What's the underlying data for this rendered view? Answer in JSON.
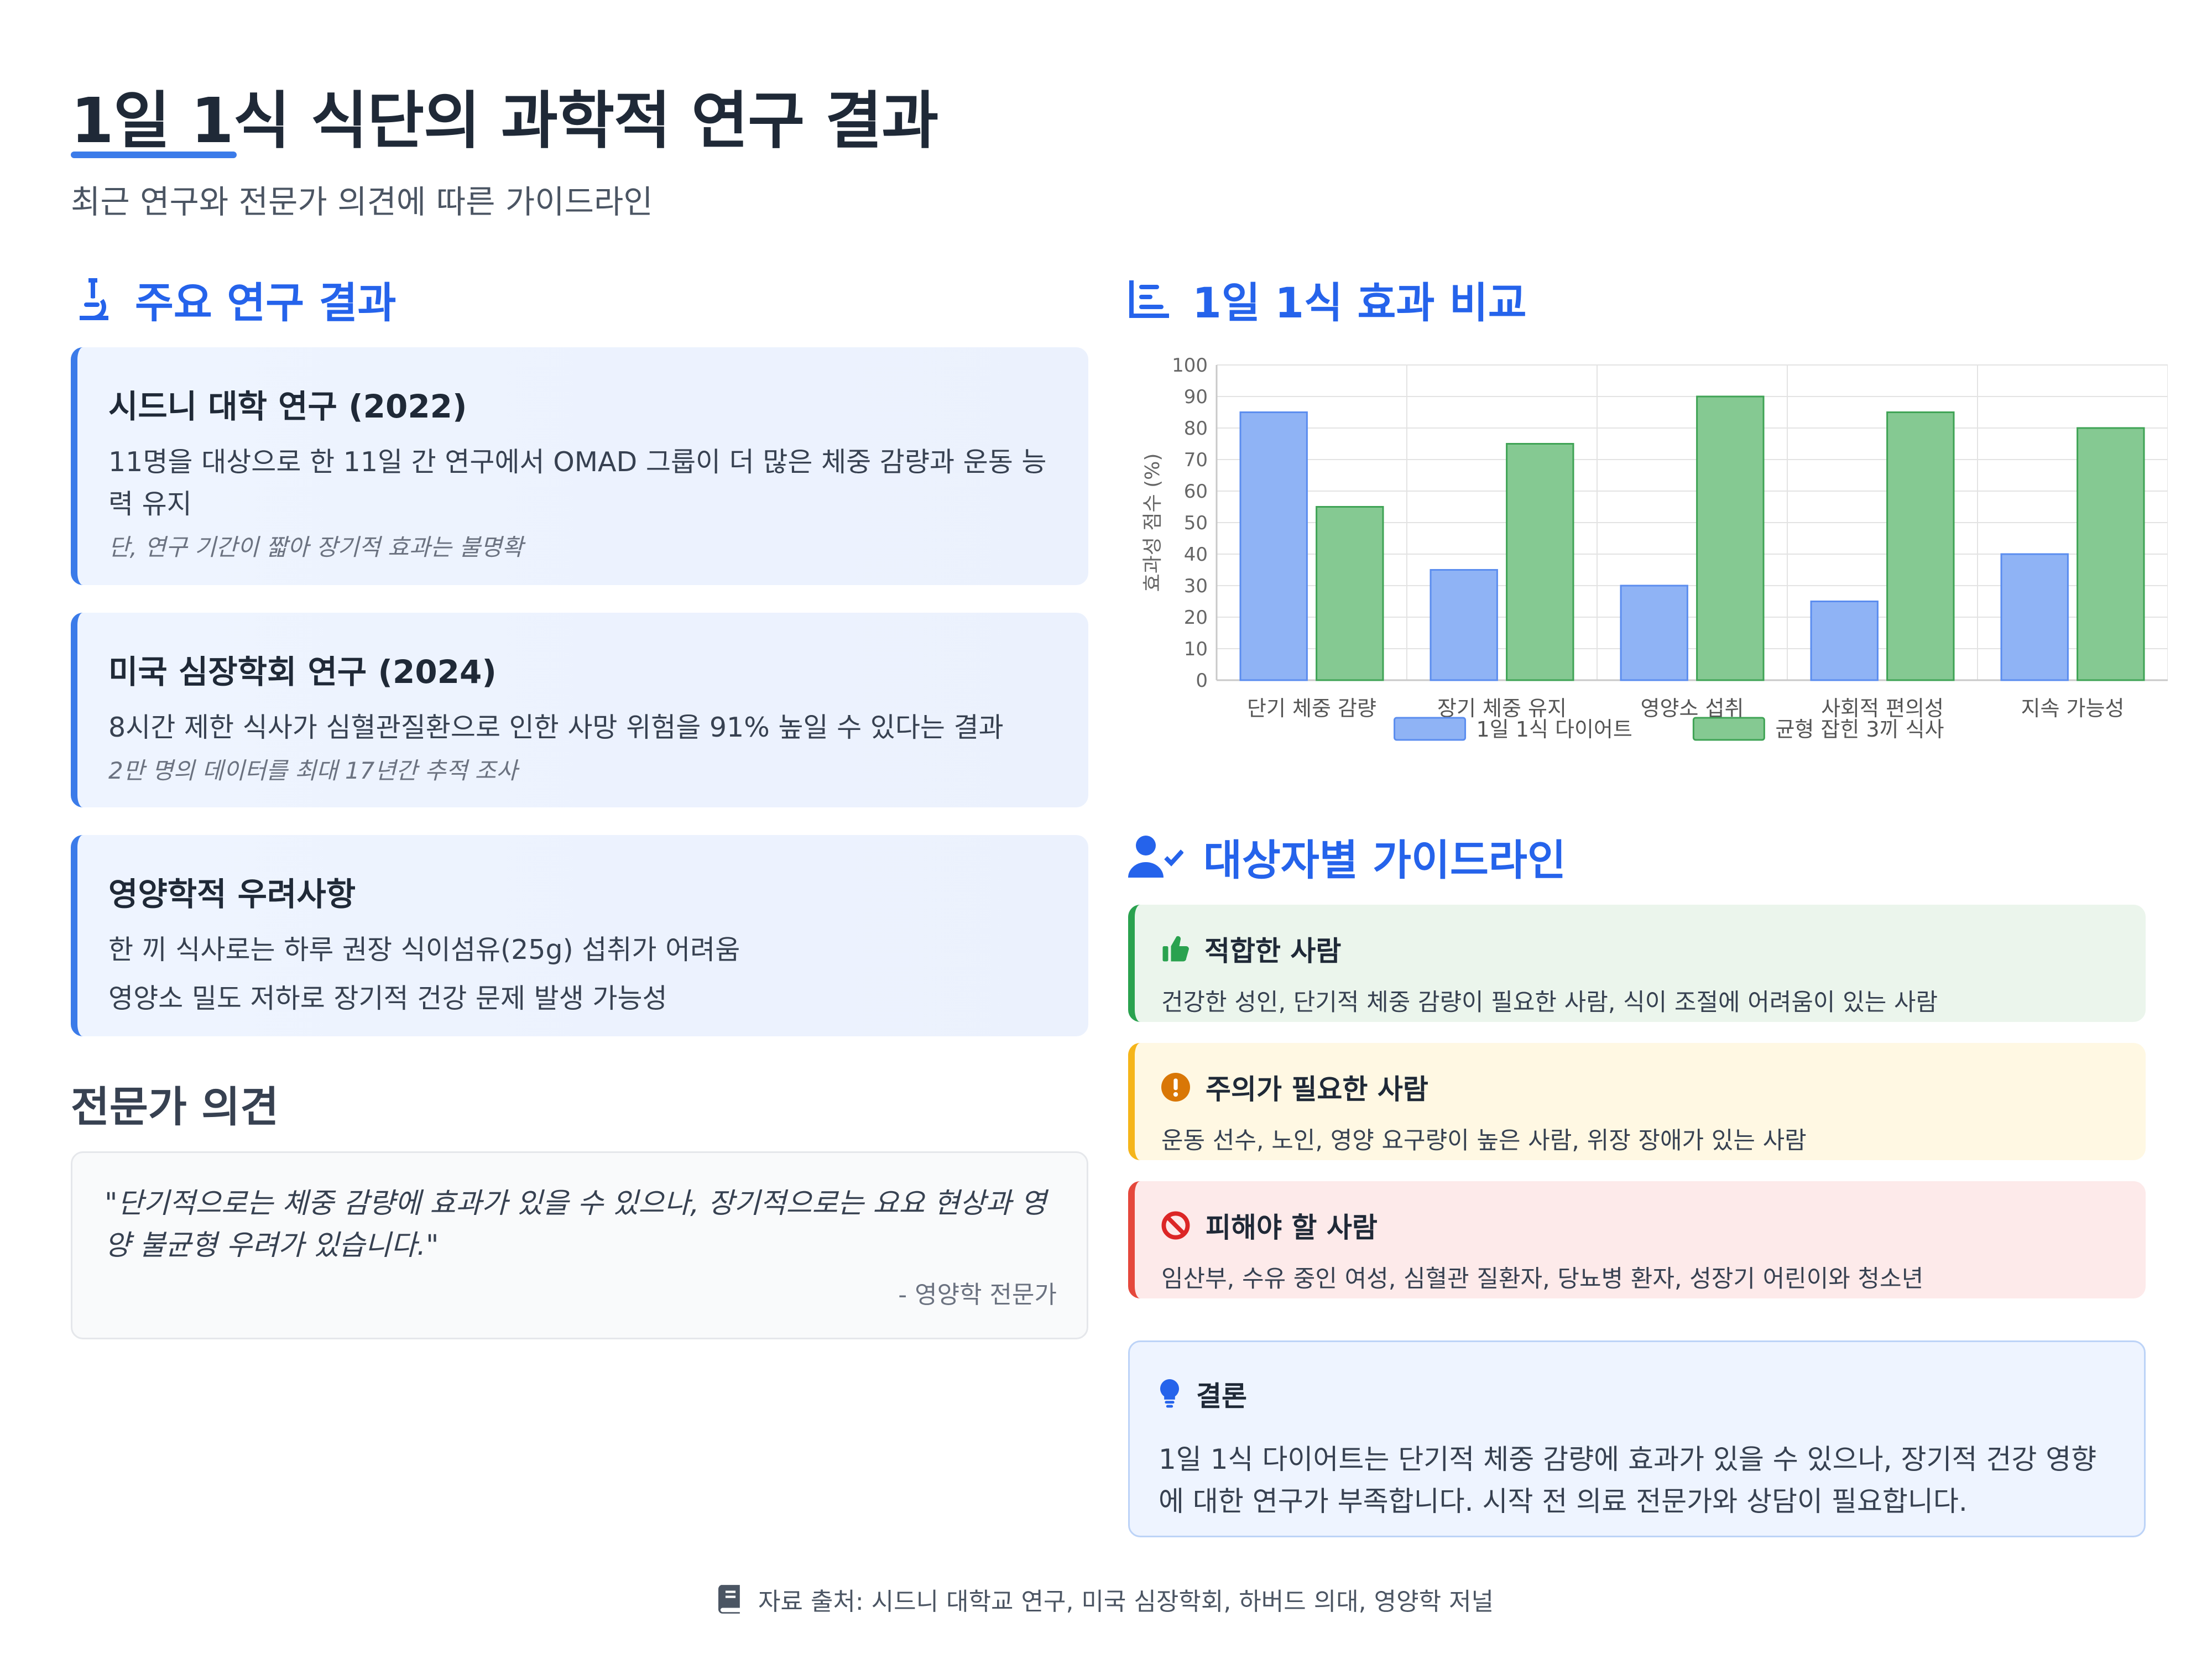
{
  "header": {
    "title": "1일 1식 식단의 과학적 연구 결과",
    "subtitle": "최근 연구와 전문가 의견에 따른 가이드라인"
  },
  "research": {
    "section_title": "주요 연구 결과",
    "icon": "microscope-icon",
    "cards": [
      {
        "title": "시드니 대학 연구 (2022)",
        "body": [
          "11명을 대상으로 한 11일 간 연구에서 OMAD 그룹이 더 많은 체중 감량과 운동 능력 유지"
        ],
        "note": "단, 연구 기간이 짧아 장기적 효과는 불명확"
      },
      {
        "title": "미국 심장학회 연구 (2024)",
        "body": [
          "8시간 제한 식사가 심혈관질환으로 인한 사망 위험을 91% 높일 수 있다는 결과"
        ],
        "note": "2만 명의 데이터를 최대 17년간 추적 조사"
      },
      {
        "title": "영양학적 우려사항",
        "body": [
          "한 끼 식사로는 하루 권장 식이섬유(25g) 섭취가 어려움",
          "영양소 밀도 저하로 장기적 건강 문제 발생 가능성"
        ],
        "note": ""
      }
    ]
  },
  "expert": {
    "section_title": "전문가 의견",
    "quote": "\"단기적으로는 체중 감량에 효과가 있을 수 있으나, 장기적으로는 요요 현상과 영양 불균형 우려가 있습니다.\"",
    "author": "- 영양학 전문가"
  },
  "comparison": {
    "section_title": "1일 1식 효과 비교",
    "icon": "chart-bar-icon"
  },
  "chart_data": {
    "type": "bar",
    "categories": [
      "단기 체중 감량",
      "장기 체중 유지",
      "영양소 섭취",
      "사회적 편의성",
      "지속 가능성"
    ],
    "series": [
      {
        "name": "1일 1식 다이어트",
        "values": [
          85,
          35,
          30,
          25,
          40
        ],
        "color": "#8fb3f5",
        "border": "#5b8def"
      },
      {
        "name": "균형 잡힌 3끼 식사",
        "values": [
          55,
          75,
          90,
          85,
          80
        ],
        "color": "#85c992",
        "border": "#3fa355"
      }
    ],
    "ylabel": "효과성 점수 (%)",
    "ylim": [
      0,
      100
    ],
    "yticks": [
      0,
      10,
      20,
      30,
      40,
      50,
      60,
      70,
      80,
      90,
      100
    ],
    "grid": true,
    "legend": "bottom"
  },
  "guidelines": {
    "section_title": "대상자별 가이드라인",
    "icon": "user-check-icon",
    "items": [
      {
        "title": "적합한 사람",
        "body": "건강한 성인, 단기적 체중 감량이 필요한 사람, 식이 조절에 어려움이 있는 사람",
        "icon": "thumbs-up-icon",
        "color": "#2aa24f"
      },
      {
        "title": "주의가 필요한 사람",
        "body": "운동 선수, 노인, 영양 요구량이 높은 사람, 위장 장애가 있는 사람",
        "icon": "exclamation-icon",
        "color": "#d97706"
      },
      {
        "title": "피해야 할 사람",
        "body": "임산부, 수유 중인 여성, 심혈관 질환자, 당뇨병 환자, 성장기 어린이와 청소년",
        "icon": "ban-icon",
        "color": "#dc2626"
      }
    ]
  },
  "conclusion": {
    "title": "결론",
    "icon": "lightbulb-icon",
    "body": "1일 1식 다이어트는 단기적 체중 감량에 효과가 있을 수 있으나, 장기적 건강 영향에 대한 연구가 부족합니다. 시작 전 의료 전문가와 상담이 필요합니다."
  },
  "footer": {
    "icon": "book-icon",
    "text": "자료 출처: 시드니 대학교 연구, 미국 심장학회, 하버드 의대, 영양학 저널"
  }
}
